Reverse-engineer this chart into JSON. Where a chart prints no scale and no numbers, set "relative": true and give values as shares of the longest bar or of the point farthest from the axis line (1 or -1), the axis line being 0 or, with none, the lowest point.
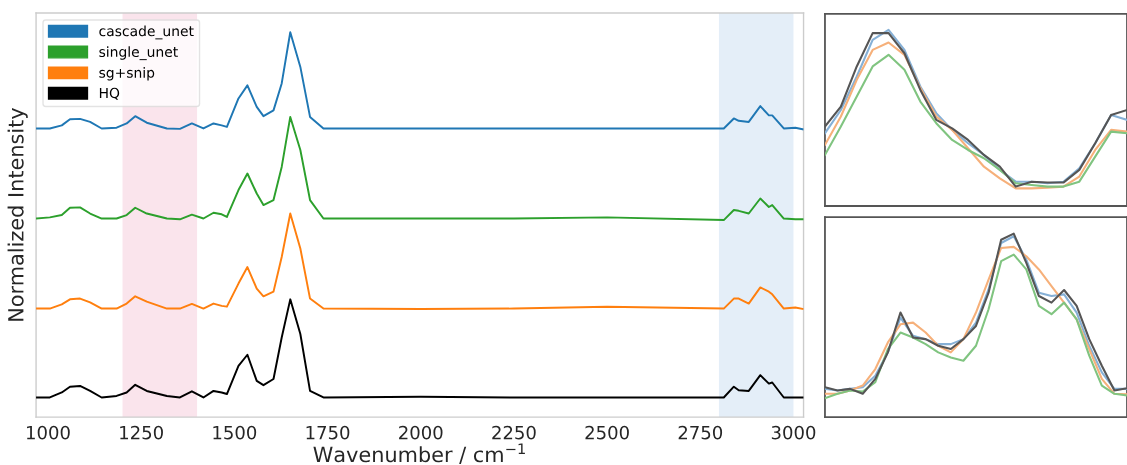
{
  "chart_data": [
    {
      "type": "line",
      "relative": true,
      "xlabel": "Wavenumber / cm$^{−1}$",
      "ylabel": "Normalized Intensity",
      "x": [
        970,
        1005,
        1037,
        1059,
        1086,
        1113,
        1144,
        1184,
        1211,
        1234,
        1265,
        1319,
        1354,
        1386,
        1417,
        1444,
        1466,
        1480,
        1511,
        1535,
        1560,
        1578,
        1605,
        1627,
        1650,
        1677,
        1703,
        1739,
        2000,
        2250,
        2500,
        2813,
        2840,
        2853,
        2880,
        2911,
        2934,
        2943,
        2974,
        3005,
        3025
      ],
      "xlim": [
        968,
        3027
      ],
      "xticks": [
        1000,
        1250,
        1500,
        1750,
        2000,
        2250,
        2500,
        2750,
        3000
      ],
      "tick_labels": "x",
      "legend": "top left",
      "grid": false,
      "bands": [
        {
          "axis": "x",
          "from": 1200,
          "to": 1400,
          "color": "#fae4ec"
        },
        {
          "axis": "x",
          "from": 2800,
          "to": 3000,
          "color": "#e4eef8"
        }
      ],
      "series": [
        {
          "name": "cascade_unet",
          "color": "#1f77b4",
          "values": [
            0.75,
            0.75,
            0.758,
            0.774,
            0.775,
            0.767,
            0.75,
            0.752,
            0.763,
            0.782,
            0.765,
            0.75,
            0.749,
            0.763,
            0.75,
            0.763,
            0.758,
            0.754,
            0.828,
            0.862,
            0.806,
            0.782,
            0.797,
            0.867,
            1.0,
            0.91,
            0.78,
            0.75,
            0.75,
            0.75,
            0.75,
            0.75,
            0.776,
            0.77,
            0.767,
            0.808,
            0.784,
            0.784,
            0.75,
            0.752,
            0.748
          ]
        },
        {
          "name": "single_unet",
          "color": "#2ca02c",
          "values": [
            0.516,
            0.519,
            0.525,
            0.544,
            0.545,
            0.529,
            0.516,
            0.516,
            0.525,
            0.544,
            0.529,
            0.516,
            0.514,
            0.526,
            0.516,
            0.531,
            0.527,
            0.52,
            0.59,
            0.633,
            0.581,
            0.551,
            0.564,
            0.65,
            0.78,
            0.694,
            0.564,
            0.516,
            0.516,
            0.516,
            0.519,
            0.512,
            0.538,
            0.536,
            0.529,
            0.568,
            0.546,
            0.551,
            0.516,
            0.514,
            0.514
          ]
        },
        {
          "name": "sg+snip",
          "color": "#ff7f0e",
          "values": [
            0.282,
            0.282,
            0.293,
            0.306,
            0.308,
            0.298,
            0.282,
            0.282,
            0.295,
            0.314,
            0.3,
            0.282,
            0.282,
            0.294,
            0.282,
            0.295,
            0.289,
            0.287,
            0.347,
            0.39,
            0.334,
            0.314,
            0.326,
            0.416,
            0.529,
            0.438,
            0.308,
            0.282,
            0.281,
            0.282,
            0.287,
            0.282,
            0.308,
            0.308,
            0.295,
            0.337,
            0.326,
            0.319,
            0.282,
            0.285,
            0.281
          ]
        },
        {
          "name": "HQ",
          "color": "#000000",
          "values": [
            0.051,
            0.051,
            0.064,
            0.079,
            0.081,
            0.068,
            0.051,
            0.055,
            0.064,
            0.084,
            0.068,
            0.055,
            0.051,
            0.067,
            0.051,
            0.068,
            0.064,
            0.06,
            0.133,
            0.162,
            0.094,
            0.083,
            0.099,
            0.207,
            0.306,
            0.216,
            0.068,
            0.051,
            0.053,
            0.051,
            0.051,
            0.051,
            0.079,
            0.07,
            0.068,
            0.109,
            0.087,
            0.09,
            0.051,
            0.051,
            0.051
          ]
        }
      ]
    },
    {
      "type": "line",
      "relative": true,
      "tick_labels": false,
      "grid": false,
      "categories": [
        null,
        null,
        null,
        null,
        null,
        null,
        null,
        null,
        null,
        null,
        null,
        null,
        null,
        null,
        null,
        null,
        null,
        null,
        null,
        null
      ],
      "series": [
        {
          "color": "#86b0d6",
          "values": [
            0.413,
            0.545,
            0.735,
            0.943,
            1.0,
            0.886,
            0.678,
            0.527,
            0.432,
            0.356,
            0.29,
            0.205,
            0.138,
            0.138,
            0.129,
            0.138,
            0.214,
            0.356,
            0.517,
            0.489
          ]
        },
        {
          "color": "#f6b07a",
          "values": [
            0.347,
            0.508,
            0.716,
            0.886,
            0.928,
            0.858,
            0.669,
            0.508,
            0.432,
            0.328,
            0.223,
            0.157,
            0.1,
            0.1,
            0.104,
            0.11,
            0.167,
            0.318,
            0.432,
            0.422
          ]
        },
        {
          "color": "#80c480",
          "values": [
            0.29,
            0.451,
            0.621,
            0.792,
            0.858,
            0.773,
            0.593,
            0.47,
            0.375,
            0.318,
            0.271,
            0.205,
            0.129,
            0.119,
            0.11,
            0.11,
            0.138,
            0.28,
            0.422,
            0.413
          ]
        },
        {
          "color": "#555555",
          "values": [
            0.451,
            0.564,
            0.792,
            0.981,
            0.981,
            0.867,
            0.659,
            0.489,
            0.441,
            0.375,
            0.29,
            0.223,
            0.11,
            0.138,
            0.133,
            0.133,
            0.205,
            0.356,
            0.517,
            0.545
          ]
        }
      ]
    },
    {
      "type": "line",
      "relative": true,
      "tick_labels": false,
      "grid": false,
      "categories": [
        null,
        null,
        null,
        null,
        null,
        null,
        null,
        null,
        null,
        null,
        null,
        null,
        null,
        null,
        null,
        null,
        null,
        null,
        null,
        null,
        null,
        null,
        null,
        null,
        null
      ],
      "series": [
        {
          "color": "#86b0d6",
          "values": [
            0.154,
            0.145,
            0.154,
            0.163,
            0.226,
            0.353,
            0.542,
            0.443,
            0.425,
            0.398,
            0.398,
            0.425,
            0.515,
            0.696,
            0.949,
            0.986,
            0.859,
            0.678,
            0.66,
            0.669,
            0.57,
            0.389,
            0.244,
            0.154,
            0.154
          ]
        },
        {
          "color": "#f6b07a",
          "values": [
            0.127,
            0.127,
            0.145,
            0.172,
            0.262,
            0.407,
            0.506,
            0.515,
            0.461,
            0.389,
            0.353,
            0.425,
            0.57,
            0.75,
            0.922,
            0.928,
            0.877,
            0.805,
            0.714,
            0.624,
            0.533,
            0.371,
            0.208,
            0.127,
            0.125
          ]
        },
        {
          "color": "#80c480",
          "values": [
            0.103,
            0.127,
            0.145,
            0.139,
            0.19,
            0.371,
            0.461,
            0.434,
            0.398,
            0.353,
            0.325,
            0.307,
            0.389,
            0.588,
            0.85,
            0.886,
            0.805,
            0.606,
            0.561,
            0.624,
            0.533,
            0.335,
            0.172,
            0.127,
            0.118
          ]
        },
        {
          "color": "#555555",
          "values": [
            0.163,
            0.145,
            0.154,
            0.127,
            0.208,
            0.353,
            0.57,
            0.434,
            0.425,
            0.389,
            0.371,
            0.425,
            0.497,
            0.678,
            0.967,
            1.0,
            0.841,
            0.66,
            0.624,
            0.693,
            0.606,
            0.425,
            0.28,
            0.145,
            0.157
          ]
        }
      ]
    }
  ]
}
